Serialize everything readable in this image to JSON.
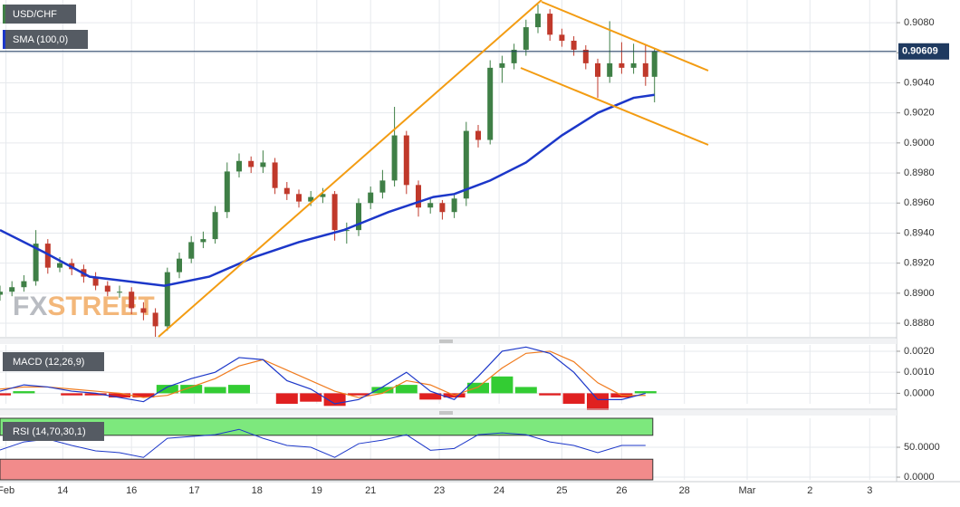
{
  "chart_data": [
    {
      "type": "candlestick",
      "title": "USD/CHF",
      "watermark_parts": [
        "FX",
        "STREET"
      ],
      "x": [
        0,
        4,
        8,
        12,
        16,
        20,
        24,
        28,
        32,
        36,
        40,
        44,
        48,
        52,
        56,
        60,
        64,
        68,
        72,
        76,
        80,
        84,
        88,
        92,
        96,
        100,
        104,
        108,
        112,
        116,
        120,
        124,
        128,
        132,
        136,
        140,
        144,
        148,
        152,
        156,
        160,
        164,
        168,
        172,
        176,
        180,
        184,
        188,
        192,
        196,
        200,
        204,
        208,
        212,
        216,
        219
      ],
      "open": [
        0.8899,
        0.8901,
        0.8904,
        0.8908,
        0.8933,
        0.8917,
        0.892,
        0.8916,
        0.8911,
        0.8905,
        0.8901,
        0.8901,
        0.889,
        0.8887,
        0.8878,
        0.8914,
        0.8923,
        0.8934,
        0.8936,
        0.8954,
        0.8981,
        0.8988,
        0.8984,
        0.8987,
        0.897,
        0.8966,
        0.8961,
        0.8964,
        0.8966,
        0.8942,
        0.8942,
        0.896,
        0.8967,
        0.8975,
        0.9005,
        0.8972,
        0.8957,
        0.896,
        0.8954,
        0.8963,
        0.9008,
        0.9002,
        0.905,
        0.9053,
        0.9062,
        0.9077,
        0.9086,
        0.9072,
        0.9068,
        0.9062,
        0.9053,
        0.9044,
        0.9053,
        0.905,
        0.9053,
        0.9044
      ],
      "high": [
        0.8905,
        0.8908,
        0.8912,
        0.8942,
        0.8936,
        0.8924,
        0.8923,
        0.8919,
        0.8914,
        0.8908,
        0.8905,
        0.8904,
        0.8894,
        0.889,
        0.8917,
        0.8927,
        0.8938,
        0.8941,
        0.8958,
        0.8987,
        0.8993,
        0.8991,
        0.8995,
        0.899,
        0.8974,
        0.8969,
        0.8968,
        0.897,
        0.8968,
        0.8947,
        0.8963,
        0.8971,
        0.8982,
        0.9024,
        0.9008,
        0.8975,
        0.8964,
        0.8962,
        0.8966,
        0.9014,
        0.9012,
        0.9055,
        0.9058,
        0.9066,
        0.9082,
        0.9092,
        0.9089,
        0.9076,
        0.9071,
        0.9065,
        0.9056,
        0.9081,
        0.9067,
        0.9066,
        0.9065,
        0.9063
      ],
      "low": [
        0.8895,
        0.8898,
        0.8901,
        0.8905,
        0.8913,
        0.8914,
        0.8912,
        0.8907,
        0.8902,
        0.8898,
        0.8897,
        0.8886,
        0.8882,
        0.8871,
        0.8875,
        0.891,
        0.892,
        0.893,
        0.8933,
        0.895,
        0.8977,
        0.898,
        0.898,
        0.8966,
        0.8962,
        0.8957,
        0.8958,
        0.896,
        0.8935,
        0.8933,
        0.8938,
        0.8956,
        0.8963,
        0.8971,
        0.8966,
        0.8951,
        0.8953,
        0.8949,
        0.895,
        0.8958,
        0.8997,
        0.8999,
        0.904,
        0.9049,
        0.9058,
        0.9073,
        0.9068,
        0.9064,
        0.9058,
        0.9049,
        0.903,
        0.904,
        0.9046,
        0.9046,
        0.9038,
        0.9027
      ],
      "close": [
        0.8901,
        0.8904,
        0.8908,
        0.8933,
        0.8917,
        0.892,
        0.8916,
        0.8911,
        0.8905,
        0.8901,
        0.8901,
        0.889,
        0.8887,
        0.8878,
        0.8914,
        0.8923,
        0.8934,
        0.8936,
        0.8954,
        0.8981,
        0.8988,
        0.8984,
        0.8987,
        0.897,
        0.8966,
        0.8961,
        0.8964,
        0.8966,
        0.8942,
        0.8942,
        0.896,
        0.8967,
        0.8975,
        0.9005,
        0.8972,
        0.8957,
        0.896,
        0.8954,
        0.8963,
        0.9008,
        0.9002,
        0.905,
        0.9053,
        0.9062,
        0.9077,
        0.9086,
        0.9072,
        0.9068,
        0.9062,
        0.9053,
        0.9044,
        0.9053,
        0.905,
        0.9053,
        0.9044,
        0.90609
      ],
      "up_color": "#3f7f46",
      "down_color": "#c0392b",
      "sma": {
        "name": "SMA (100,0)",
        "color": "#1c37c9",
        "x": [
          0,
          15,
          30,
          55,
          70,
          85,
          100,
          115,
          130,
          145,
          152,
          164,
          176,
          188,
          200,
          212,
          219
        ],
        "values": [
          0.8942,
          0.8927,
          0.8911,
          0.8905,
          0.8911,
          0.8924,
          0.8934,
          0.8942,
          0.8954,
          0.8964,
          0.8966,
          0.8975,
          0.8987,
          0.9005,
          0.902,
          0.903,
          0.9032
        ]
      },
      "last_price": 0.90609,
      "last_price_color": "#1f3a60",
      "xlim": [
        0,
        300
      ],
      "xticks": [
        {
          "value": 2,
          "label": "Feb"
        },
        {
          "value": 21,
          "label": "14"
        },
        {
          "value": 44,
          "label": "16"
        },
        {
          "value": 65,
          "label": "17"
        },
        {
          "value": 86,
          "label": "18"
        },
        {
          "value": 106,
          "label": "19"
        },
        {
          "value": 124,
          "label": "21"
        },
        {
          "value": 147,
          "label": "23"
        },
        {
          "value": 167,
          "label": "24"
        },
        {
          "value": 188,
          "label": "25"
        },
        {
          "value": 208,
          "label": "26"
        },
        {
          "value": 229,
          "label": "28"
        },
        {
          "value": 250,
          "label": "Mar"
        },
        {
          "value": 271,
          "label": "2"
        },
        {
          "value": 291,
          "label": "3"
        }
      ],
      "ylim": [
        0.8871,
        0.90951
      ],
      "yticks": [
        {
          "value": 0.888,
          "label": "0.8880"
        },
        {
          "value": 0.89,
          "label": "0.8900"
        },
        {
          "value": 0.892,
          "label": "0.8920"
        },
        {
          "value": 0.894,
          "label": "0.8940"
        },
        {
          "value": 0.896,
          "label": "0.8960"
        },
        {
          "value": 0.898,
          "label": "0.8980"
        },
        {
          "value": 0.9,
          "label": "0.9000"
        },
        {
          "value": 0.902,
          "label": "0.9020"
        },
        {
          "value": 0.904,
          "label": "0.9040"
        },
        {
          "value": 0.906,
          "label": "0.9060"
        },
        {
          "value": 0.908,
          "label": "0.9080"
        }
      ],
      "grid": true
    },
    {
      "type": "macd",
      "title": "MACD (12,26,9)",
      "x": [
        0,
        8,
        16,
        24,
        32,
        40,
        48,
        56,
        64,
        72,
        80,
        88,
        96,
        104,
        112,
        120,
        128,
        136,
        144,
        152,
        160,
        168,
        176,
        184,
        192,
        200,
        208,
        216
      ],
      "macd": {
        "color": "#1c37c9",
        "values": [
          0.0001,
          0.0004,
          0.0003,
          0.0001,
          0,
          -0.0002,
          -0.0004,
          0.0003,
          0.0007,
          0.001,
          0.0017,
          0.0016,
          0.0006,
          0.0002,
          -0.0005,
          -0.0003,
          0.0003,
          0.001,
          0.0001,
          -0.0003,
          0.0008,
          0.002,
          0.0022,
          0.0019,
          0.001,
          -0.0003,
          -0.0003,
          0
        ]
      },
      "signal": {
        "color": "#f07b1e",
        "values": [
          0.0002,
          0.0003,
          0.0003,
          0.0002,
          0.0001,
          0,
          -0.0002,
          -0.0001,
          0.0003,
          0.0007,
          0.0013,
          0.0016,
          0.0011,
          0.0006,
          0.0001,
          -0.0002,
          0,
          0.0006,
          0.0004,
          -0.0001,
          0.0003,
          0.0012,
          0.0019,
          0.002,
          0.0015,
          0.0005,
          -0.0001,
          -0.0001
        ]
      },
      "histogram": {
        "up_color": "#33cc33",
        "down_color": "#e02020",
        "values": [
          -0.0001,
          0.0001,
          0,
          -0.0001,
          -0.0001,
          -0.0002,
          -0.0002,
          0.0004,
          0.0004,
          0.0003,
          0.0004,
          0,
          -0.0005,
          -0.0004,
          -0.0006,
          -0.0001,
          0.0003,
          0.0004,
          -0.0003,
          -0.0002,
          0.0005,
          0.0008,
          0.0003,
          -0.0001,
          -0.0005,
          -0.0008,
          -0.0002,
          0.0001
        ]
      },
      "ylim": [
        -0.0005,
        0.0023
      ],
      "yticks": [
        {
          "value": 0,
          "label": "0.0000"
        },
        {
          "value": 0.001,
          "label": "0.0010"
        },
        {
          "value": 0.002,
          "label": "0.0020"
        }
      ]
    },
    {
      "type": "rsi",
      "title": "RSI (14,70,30,1)",
      "x": [
        0,
        8,
        16,
        24,
        32,
        40,
        48,
        56,
        64,
        72,
        80,
        88,
        96,
        104,
        112,
        120,
        128,
        136,
        144,
        152,
        160,
        168,
        176,
        184,
        192,
        200,
        208,
        216
      ],
      "values": [
        45.5,
        59,
        63.6,
        53,
        44,
        41,
        33,
        65,
        68,
        71,
        80,
        65,
        53,
        50,
        33,
        56,
        62,
        71,
        45,
        48,
        71,
        74,
        71,
        59,
        53,
        41,
        53,
        53
      ],
      "color": "#1c37c9",
      "upper": 70,
      "lower": 30,
      "upper_color": "#7de87d",
      "lower_color": "#f28b8b",
      "ylim": [
        -4.5,
        98.5
      ],
      "yticks": [
        {
          "value": 0,
          "label": "0.0000"
        },
        {
          "value": 50,
          "label": "50.0000"
        }
      ]
    }
  ]
}
